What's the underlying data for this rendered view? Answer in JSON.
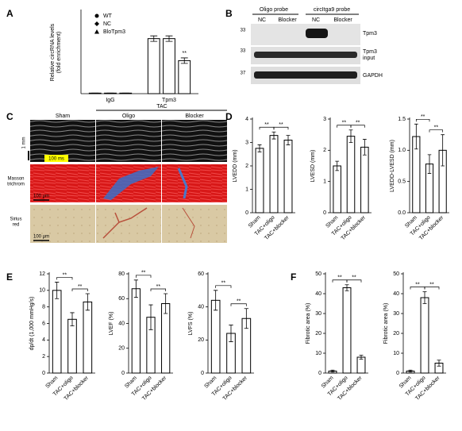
{
  "figure": {
    "panel_labels": [
      "A",
      "B",
      "C",
      "D",
      "E",
      "F"
    ],
    "blot": {
      "probes": [
        "Oligo probe",
        "circItga9 probe"
      ],
      "lanes": [
        "NC",
        "Blocker",
        "NC",
        "Blocker"
      ],
      "sizes": [
        "33",
        "33",
        "37"
      ],
      "rows": [
        [
          "Tpm3"
        ],
        [
          "Tpm3",
          "input"
        ],
        [
          "GAPDH"
        ]
      ]
    },
    "histology": {
      "tac": "TAC",
      "groups": [
        "Sham",
        "Oligo",
        "Blocker"
      ],
      "rows": [
        [
          "Masson",
          "trichrom"
        ],
        [
          "Sirius",
          "red"
        ]
      ],
      "scale_mm": "1 mm",
      "scale_ms": "100 ms",
      "scale_um": [
        "100 μm",
        "100 μm"
      ]
    }
  },
  "chart_data": [
    {
      "type": "grouped-bar",
      "ylabel": [
        "Relative circRNA levels",
        "(fold enrichment)"
      ],
      "categories": [
        "IgG",
        "Tpm3"
      ],
      "ylim": [
        0,
        1.5
      ],
      "series": [
        {
          "name": "WT",
          "marker": "circle",
          "color": "#ffffff",
          "values": [
            0.01,
            1.0
          ],
          "errors": [
            0,
            0.05
          ]
        },
        {
          "name": "NC",
          "marker": "diamond",
          "color": "#ffffff",
          "values": [
            0.01,
            1.0
          ],
          "errors": [
            0,
            0.05
          ]
        },
        {
          "name": "BloTpm3",
          "marker": "triangle",
          "color": "#ffffff",
          "values": [
            0.01,
            0.6
          ],
          "errors": [
            0,
            0.05
          ]
        }
      ],
      "annotations": [
        "**"
      ]
    },
    {
      "type": "bar",
      "ylabel": "LVEDD (mm)",
      "categories": [
        "Sham",
        "TAC+oligo",
        "TAC+blocker"
      ],
      "values": [
        2.75,
        3.3,
        3.1
      ],
      "errors": [
        0.15,
        0.15,
        0.2
      ],
      "color": "#ffffff",
      "ylim": [
        0,
        4
      ],
      "yticks": [
        0,
        1,
        2,
        3,
        4
      ],
      "annotations": [
        "**",
        "**"
      ]
    },
    {
      "type": "bar",
      "ylabel": "LVESD (mm)",
      "categories": [
        "Sham",
        "TAC+oligo",
        "TAC+blocker"
      ],
      "values": [
        1.5,
        2.45,
        2.1
      ],
      "errors": [
        0.15,
        0.2,
        0.25
      ],
      "color": "#ffffff",
      "ylim": [
        0,
        3
      ],
      "yticks": [
        0,
        1,
        2,
        3
      ],
      "annotations": [
        "**",
        "**"
      ]
    },
    {
      "type": "bar",
      "ylabel": "LVEDD-LVESD (mm)",
      "categories": [
        "Sham",
        "TAC+oligo",
        "TAC+blocker"
      ],
      "values": [
        1.22,
        0.78,
        1.0
      ],
      "errors": [
        0.2,
        0.15,
        0.25
      ],
      "color": "#ffffff",
      "ylim": [
        0,
        1.5
      ],
      "yticks": [
        {
          "value": 0,
          "label": "0.0"
        },
        {
          "value": 0.5,
          "label": "0.5"
        },
        {
          "value": 1,
          "label": "1.0"
        },
        {
          "value": 1.5,
          "label": "1.5"
        }
      ],
      "annotations": [
        "**",
        "**"
      ]
    },
    {
      "type": "bar",
      "ylabel": "dp/dt (1,000 mmHg/s)",
      "categories": [
        "Sham",
        "TAC+oligo",
        "TAC+blocker"
      ],
      "values": [
        10,
        6.5,
        8.6
      ],
      "errors": [
        1,
        0.8,
        1
      ],
      "color": "#ffffff",
      "ylim": [
        0,
        12
      ],
      "yticks": [
        0,
        2,
        4,
        6,
        8,
        10,
        12
      ],
      "annotations": [
        "**",
        "**"
      ]
    },
    {
      "type": "bar",
      "ylabel": "LVEF (%)",
      "categories": [
        "Sham",
        "TAC+oligo",
        "TAC+blocker"
      ],
      "values": [
        68,
        45,
        56
      ],
      "errors": [
        7,
        10,
        8
      ],
      "color": "#ffffff",
      "ylim": [
        0,
        80
      ],
      "yticks": [
        0,
        20,
        40,
        60,
        80
      ],
      "annotations": [
        "**",
        "**"
      ]
    },
    {
      "type": "bar",
      "ylabel": "LVFS (%)",
      "categories": [
        "Sham",
        "TAC+oligo",
        "TAC+blocker"
      ],
      "values": [
        44,
        24,
        33
      ],
      "errors": [
        6,
        5,
        6
      ],
      "color": "#ffffff",
      "ylim": [
        0,
        60
      ],
      "yticks": [
        0,
        20,
        40,
        60
      ],
      "annotations": [
        "**",
        "**"
      ]
    },
    {
      "type": "bar",
      "ylabel": "Fibrotic area (%)",
      "categories": [
        "Sham",
        "TAC+oligo",
        "TAC+blocker"
      ],
      "values": [
        1,
        43,
        8
      ],
      "errors": [
        0.5,
        1.5,
        1
      ],
      "color": "#ffffff",
      "ylim": [
        0,
        50
      ],
      "yticks": [
        0,
        10,
        20,
        30,
        40,
        50
      ],
      "annotations": [
        "**",
        "**"
      ]
    },
    {
      "type": "bar",
      "ylabel": "Fibrotic area (%)",
      "categories": [
        "Sham",
        "TAC+oligo",
        "TAC+blocker"
      ],
      "values": [
        1,
        38,
        5
      ],
      "errors": [
        0.5,
        3,
        1.5
      ],
      "color": "#ffffff",
      "ylim": [
        0,
        50
      ],
      "yticks": [
        0,
        10,
        20,
        30,
        40,
        50
      ],
      "annotations": [
        "**",
        "**"
      ]
    }
  ]
}
